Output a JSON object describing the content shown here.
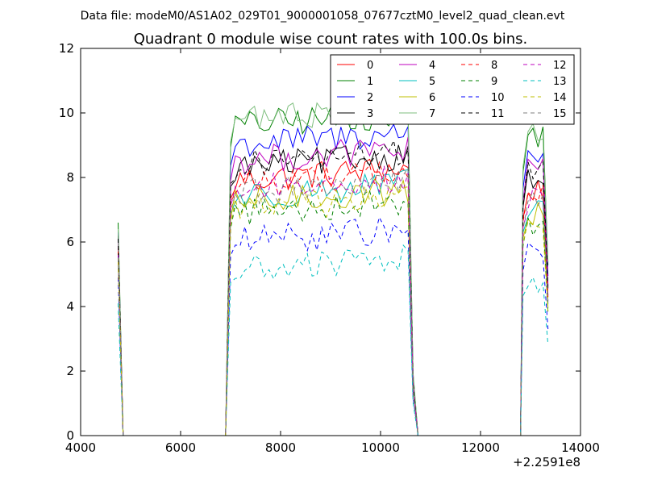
{
  "suptitle": "Data file: modeM0/AS1A02_029T01_9000001058_07677cztM0_level2_quad_clean.evt",
  "chart_data": {
    "type": "line",
    "title": "Quadrant 0 module wise count rates with 100.0s bins.",
    "xlabel": "",
    "ylabel": "",
    "xlim": [
      4000,
      14000
    ],
    "ylim": [
      0,
      12
    ],
    "x_offset_label": "+2.2591e8",
    "xticks": [
      4000,
      6000,
      8000,
      10000,
      12000,
      14000
    ],
    "yticks": [
      0,
      2,
      4,
      6,
      8,
      10,
      12
    ],
    "legend_position": "top-right",
    "legend_columns": 4,
    "segments": [
      {
        "start": 4750,
        "end": 4850,
        "edge": "rise-from-drop"
      },
      {
        "start": 6900,
        "end": 10650
      },
      {
        "start": 12800,
        "end": 13350
      }
    ],
    "series": [
      {
        "name": "0",
        "color": "#ff0000",
        "dash": "solid",
        "level": 7.9,
        "first_point": 5.8
      },
      {
        "name": "1",
        "color": "#008000",
        "dash": "solid",
        "level": 9.6,
        "first_point": 6.6
      },
      {
        "name": "2",
        "color": "#0000ff",
        "dash": "solid",
        "level": 9.0,
        "first_point": 6.3
      },
      {
        "name": "3",
        "color": "#000000",
        "dash": "solid",
        "level": 8.3,
        "first_point": 6.2
      },
      {
        "name": "4",
        "color": "#bf00bf",
        "dash": "solid",
        "level": 8.5,
        "first_point": 6.0
      },
      {
        "name": "5",
        "color": "#00bfbf",
        "dash": "solid",
        "level": 7.4,
        "first_point": 5.6
      },
      {
        "name": "6",
        "color": "#bfbf00",
        "dash": "solid",
        "level": 7.2,
        "first_point": 5.5
      },
      {
        "name": "7",
        "color": "#7fbf7f",
        "dash": "solid",
        "level": 9.8,
        "first_point": 6.4
      },
      {
        "name": "8",
        "color": "#ff0000",
        "dash": "dashed",
        "level": 7.8,
        "first_point": 5.7
      },
      {
        "name": "9",
        "color": "#008000",
        "dash": "dashed",
        "level": 6.9,
        "first_point": 5.4
      },
      {
        "name": "10",
        "color": "#0000ff",
        "dash": "dashed",
        "level": 6.0,
        "first_point": 4.9
      },
      {
        "name": "11",
        "color": "#000000",
        "dash": "dashed",
        "level": 8.4,
        "first_point": 6.1
      },
      {
        "name": "12",
        "color": "#bf00bf",
        "dash": "dashed",
        "level": 7.6,
        "first_point": 5.6
      },
      {
        "name": "13",
        "color": "#00bfbf",
        "dash": "dashed",
        "level": 5.1,
        "first_point": 4.1
      },
      {
        "name": "14",
        "color": "#bfbf00",
        "dash": "dashed",
        "level": 7.0,
        "first_point": 5.4
      },
      {
        "name": "15",
        "color": "#7f7f7f",
        "dash": "dashed",
        "level": 7.5,
        "first_point": 5.5
      }
    ]
  }
}
